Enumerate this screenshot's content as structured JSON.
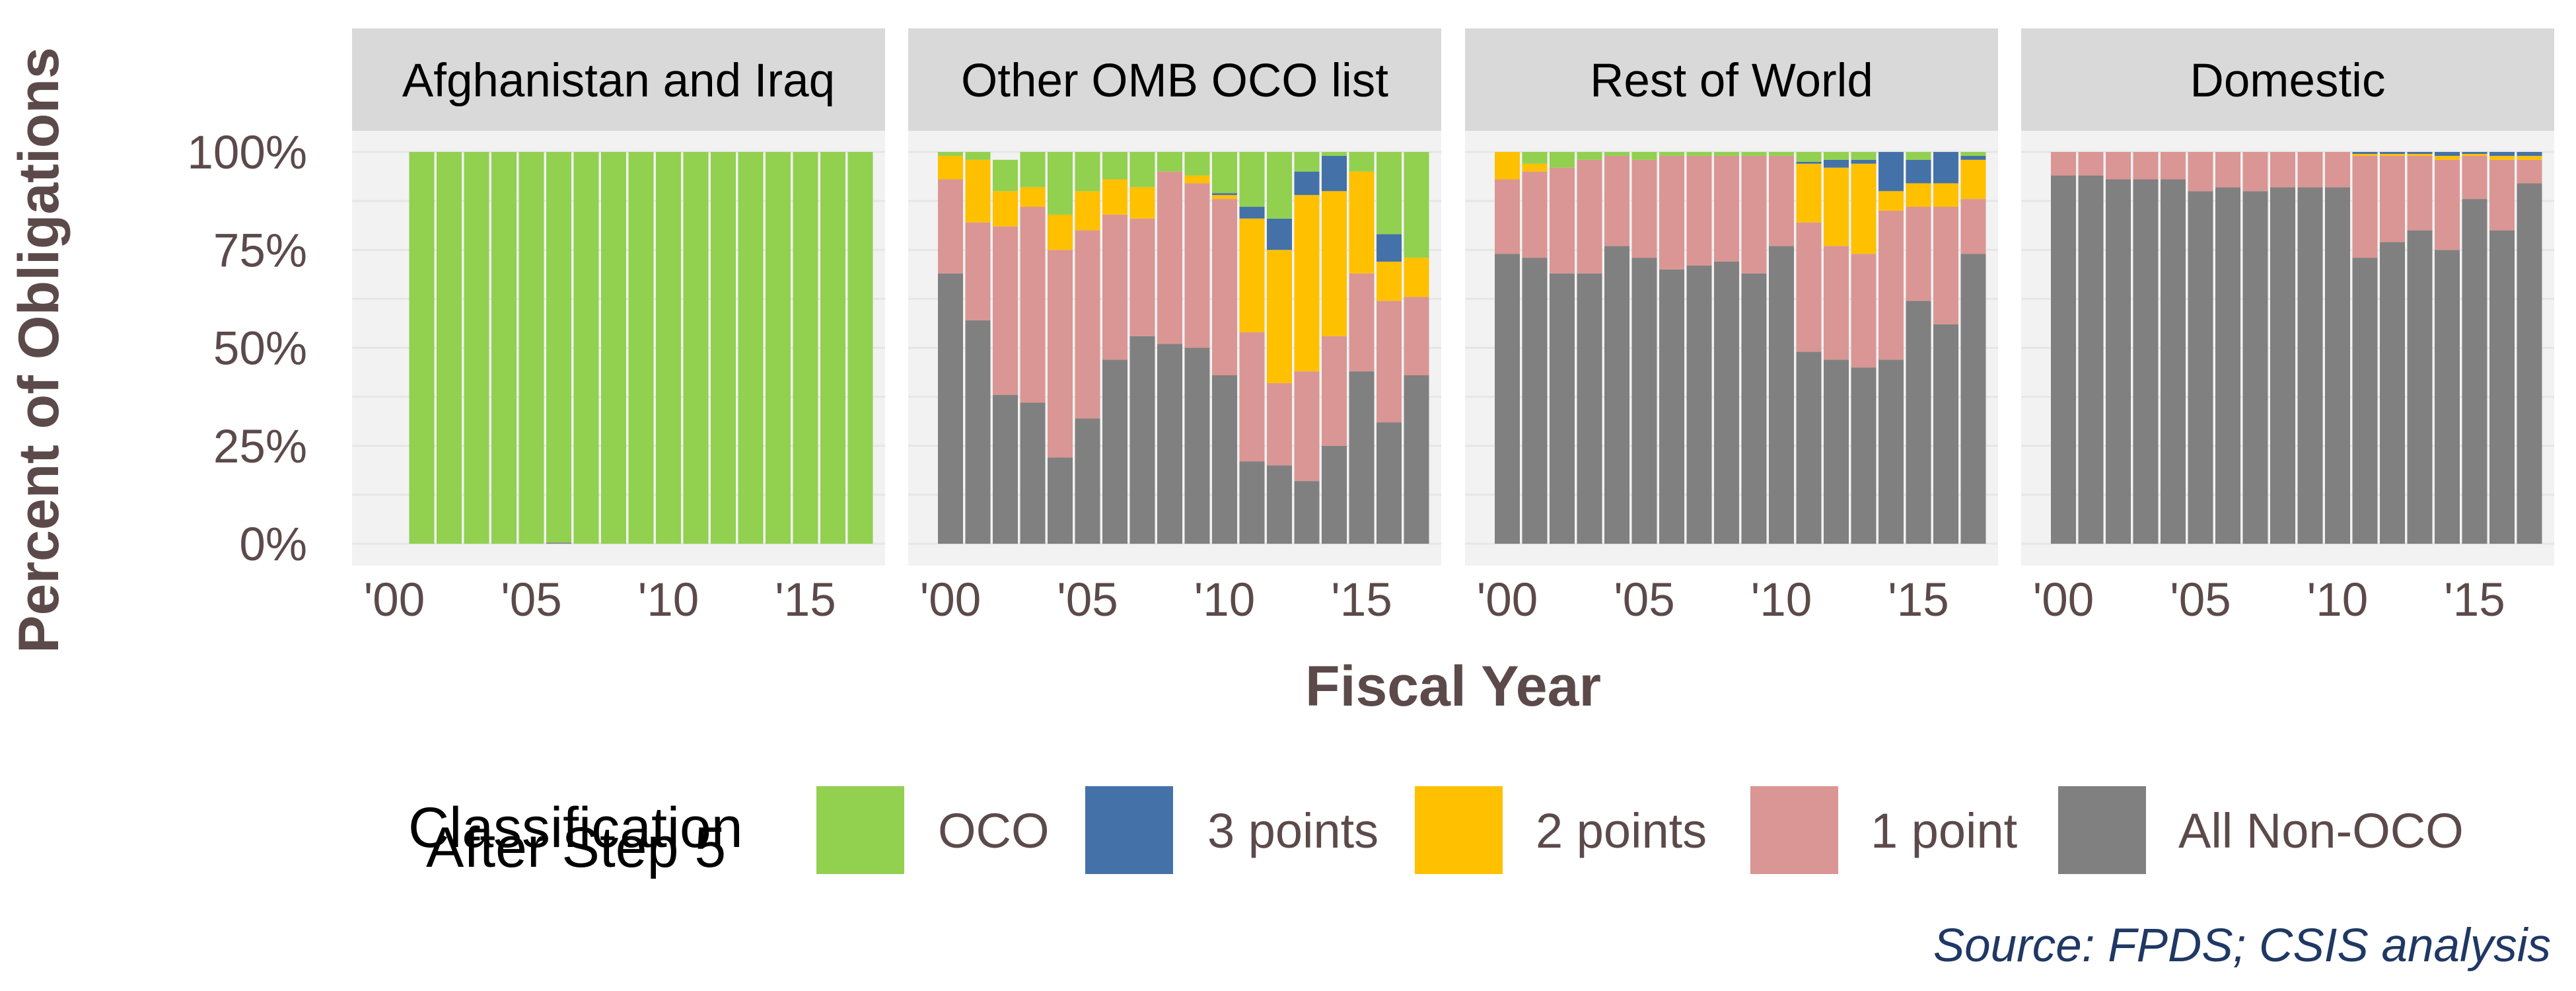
{
  "chart_data": {
    "type": "bar",
    "stacked": true,
    "percent_stacked": true,
    "ylabel": "Percent of Obligations",
    "xlabel": "Fiscal Year",
    "ylim": [
      0,
      1
    ],
    "yticks": [
      "0%",
      "25%",
      "50%",
      "75%",
      "100%"
    ],
    "xticks": [
      {
        "year": 2000,
        "label": "'00"
      },
      {
        "year": 2005,
        "label": "'05"
      },
      {
        "year": 2010,
        "label": "'10"
      },
      {
        "year": 2015,
        "label": "'15"
      }
    ],
    "years": [
      2000,
      2001,
      2002,
      2003,
      2004,
      2005,
      2006,
      2007,
      2008,
      2009,
      2010,
      2011,
      2012,
      2013,
      2014,
      2015,
      2016,
      2017
    ],
    "series_order": [
      "All Non-OCO",
      "1 point",
      "2 points",
      "3 points",
      "OCO"
    ],
    "legend": {
      "title_line1": "Classification",
      "title_line2": "After Step 5",
      "placement": "bottom",
      "items": [
        {
          "label": "OCO",
          "color": "#92d050"
        },
        {
          "label": "3 points",
          "color": "#4472a8"
        },
        {
          "label": "2 points",
          "color": "#ffc000"
        },
        {
          "label": "1 point",
          "color": "#da9694"
        },
        {
          "label": "All Non-OCO",
          "color": "#808080"
        }
      ]
    },
    "colors": {
      "All Non-OCO": "#808080",
      "1 point": "#da9694",
      "2 points": "#ffc000",
      "3 points": "#4472a8",
      "OCO": "#92d050"
    },
    "panels": [
      {
        "title": "Afghanistan and Iraq",
        "first_year": 2001,
        "series": [
          {
            "name": "All Non-OCO",
            "values": [
              0,
              0,
              0,
              0,
              0,
              0.003,
              0,
              0,
              0,
              0,
              0,
              0,
              0,
              0,
              0,
              0,
              0
            ]
          },
          {
            "name": "1 point",
            "values": [
              0,
              0,
              0,
              0,
              0,
              0,
              0,
              0,
              0,
              0,
              0,
              0,
              0,
              0,
              0,
              0,
              0
            ]
          },
          {
            "name": "2 points",
            "values": [
              0,
              0,
              0,
              0,
              0,
              0,
              0,
              0,
              0,
              0,
              0,
              0,
              0,
              0,
              0,
              0,
              0
            ]
          },
          {
            "name": "3 points",
            "values": [
              0,
              0,
              0,
              0,
              0,
              0,
              0,
              0,
              0,
              0,
              0,
              0,
              0,
              0,
              0,
              0,
              0
            ]
          },
          {
            "name": "OCO",
            "values": [
              1,
              1,
              1,
              1,
              1,
              0.997,
              1,
              1,
              1,
              1,
              1,
              1,
              1,
              1,
              1,
              1,
              1
            ]
          }
        ]
      },
      {
        "title": "Other OMB OCO list",
        "first_year": 2000,
        "series": [
          {
            "name": "All Non-OCO",
            "values": [
              0.69,
              0.57,
              0.38,
              0.36,
              0.22,
              0.32,
              0.47,
              0.53,
              0.51,
              0.5,
              0.43,
              0.21,
              0.2,
              0.16,
              0.25,
              0.44,
              0.31,
              0.43
            ]
          },
          {
            "name": "1 point",
            "values": [
              0.24,
              0.25,
              0.43,
              0.5,
              0.53,
              0.48,
              0.37,
              0.3,
              0.44,
              0.42,
              0.45,
              0.33,
              0.21,
              0.28,
              0.28,
              0.25,
              0.31,
              0.2
            ]
          },
          {
            "name": "2 points",
            "values": [
              0.06,
              0.16,
              0.09,
              0.05,
              0.09,
              0.1,
              0.09,
              0.08,
              0,
              0.02,
              0.01,
              0.29,
              0.34,
              0.45,
              0.37,
              0.26,
              0.1,
              0.1
            ]
          },
          {
            "name": "3 points",
            "values": [
              0,
              0,
              0,
              0,
              0,
              0,
              0,
              0,
              0,
              0,
              0.005,
              0.03,
              0.08,
              0.06,
              0.09,
              0,
              0.07,
              0
            ]
          },
          {
            "name": "OCO",
            "values": [
              0.01,
              0.02,
              0.08,
              0.09,
              0.16,
              0.1,
              0.07,
              0.09,
              0.05,
              0.06,
              0.105,
              0.14,
              0.17,
              0.05,
              0.01,
              0.05,
              0.21,
              0.27
            ]
          }
        ]
      },
      {
        "title": "Rest of World",
        "first_year": 2000,
        "series": [
          {
            "name": "All Non-OCO",
            "values": [
              0.74,
              0.73,
              0.69,
              0.69,
              0.76,
              0.73,
              0.7,
              0.71,
              0.72,
              0.69,
              0.76,
              0.49,
              0.47,
              0.45,
              0.47,
              0.62,
              0.56,
              0.74
            ]
          },
          {
            "name": "1 point",
            "values": [
              0.19,
              0.22,
              0.27,
              0.29,
              0.23,
              0.25,
              0.29,
              0.28,
              0.27,
              0.3,
              0.23,
              0.33,
              0.29,
              0.29,
              0.38,
              0.24,
              0.3,
              0.14
            ]
          },
          {
            "name": "2 points",
            "values": [
              0.07,
              0.02,
              0,
              0,
              0,
              0,
              0,
              0,
              0,
              0,
              0,
              0.15,
              0.2,
              0.23,
              0.05,
              0.06,
              0.06,
              0.1
            ]
          },
          {
            "name": "3 points",
            "values": [
              0,
              0,
              0,
              0,
              0,
              0,
              0,
              0,
              0,
              0,
              0,
              0.005,
              0.02,
              0.01,
              0.1,
              0.06,
              0.08,
              0.01
            ]
          },
          {
            "name": "OCO",
            "values": [
              0,
              0.03,
              0.04,
              0.02,
              0.01,
              0.02,
              0.01,
              0.01,
              0.01,
              0.01,
              0.01,
              0.025,
              0.02,
              0.02,
              0,
              0.02,
              0,
              0.01
            ]
          }
        ]
      },
      {
        "title": "Domestic",
        "first_year": 2000,
        "series": [
          {
            "name": "All Non-OCO",
            "values": [
              0.94,
              0.94,
              0.93,
              0.93,
              0.93,
              0.9,
              0.91,
              0.9,
              0.91,
              0.91,
              0.91,
              0.73,
              0.77,
              0.8,
              0.75,
              0.88,
              0.8,
              0.92
            ]
          },
          {
            "name": "1 point",
            "values": [
              0.06,
              0.06,
              0.07,
              0.07,
              0.07,
              0.1,
              0.09,
              0.1,
              0.09,
              0.09,
              0.09,
              0.26,
              0.22,
              0.19,
              0.23,
              0.11,
              0.18,
              0.06
            ]
          },
          {
            "name": "2 points",
            "values": [
              0,
              0,
              0,
              0,
              0,
              0,
              0,
              0,
              0,
              0,
              0,
              0.005,
              0.005,
              0.005,
              0.01,
              0.005,
              0.01,
              0.01
            ]
          },
          {
            "name": "3 points",
            "values": [
              0,
              0,
              0,
              0,
              0,
              0,
              0,
              0,
              0,
              0,
              0,
              0.005,
              0.005,
              0.005,
              0.01,
              0.005,
              0.01,
              0.01
            ]
          },
          {
            "name": "OCO",
            "values": [
              0,
              0,
              0,
              0,
              0,
              0,
              0,
              0,
              0,
              0,
              0,
              0,
              0,
              0,
              0,
              0,
              0,
              0
            ]
          }
        ]
      }
    ],
    "source": "Source: FPDS; CSIS analysis"
  }
}
